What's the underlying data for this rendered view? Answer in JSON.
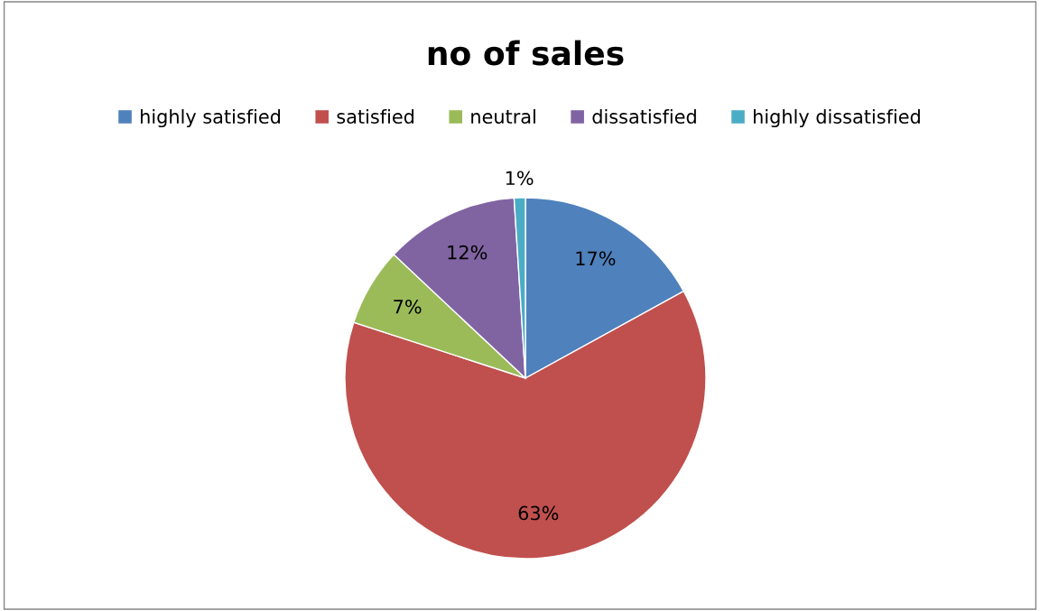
{
  "chart_data": {
    "type": "pie",
    "title": "no of sales",
    "categories": [
      "highly satisfied",
      "satisfied",
      "neutral",
      "dissatisfied",
      "highly dissatisfied"
    ],
    "values": [
      17,
      63,
      7,
      12,
      1
    ],
    "colors": [
      "#4f81bd",
      "#c0504d",
      "#9bbb59",
      "#8064a2",
      "#4bacc6"
    ],
    "value_labels": [
      "17%",
      "63%",
      "7%",
      "12%",
      "1%"
    ],
    "legend": "top"
  }
}
